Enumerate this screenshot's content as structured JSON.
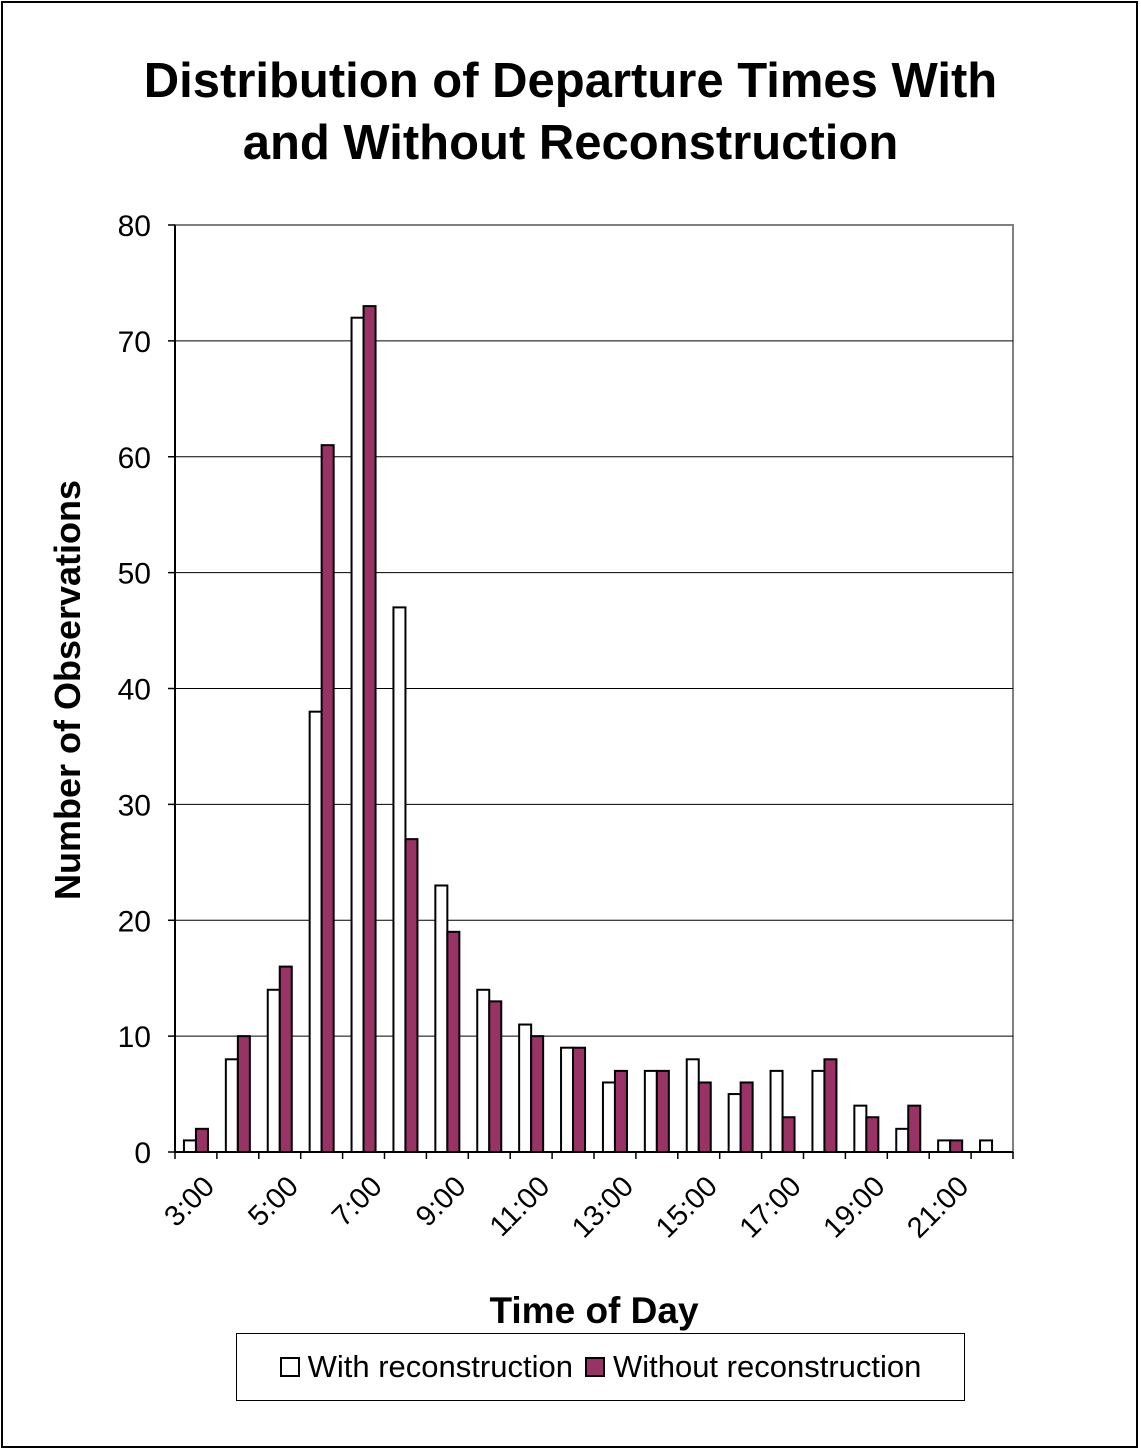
{
  "chart_data": {
    "type": "bar",
    "title": "Distribution of Departure Times With and Without Reconstruction",
    "title_lines": [
      "Distribution of Departure Times With",
      "and Without Reconstruction"
    ],
    "xlabel": "Time of Day",
    "ylabel": "Number of Observations",
    "ylim": [
      0,
      80
    ],
    "yticks": [
      0,
      10,
      20,
      30,
      40,
      50,
      60,
      70,
      80
    ],
    "x_tick_labels": [
      "3:00",
      "5:00",
      "7:00",
      "9:00",
      "11:00",
      "13:00",
      "15:00",
      "17:00",
      "19:00",
      "21:00"
    ],
    "grid": "horizontal",
    "legend_position": "bottom",
    "series": [
      {
        "name": "With reconstruction",
        "color": "#ffffff",
        "values": [
          1,
          8,
          14,
          38,
          72,
          47,
          23,
          14,
          11,
          9,
          6,
          7,
          8,
          5,
          7,
          7,
          4,
          2,
          1,
          1
        ]
      },
      {
        "name": "Without reconstruction",
        "color": "#993366",
        "values": [
          2,
          10,
          16,
          61,
          73,
          27,
          19,
          13,
          10,
          9,
          7,
          7,
          6,
          6,
          3,
          8,
          3,
          4,
          1,
          0
        ]
      }
    ]
  }
}
